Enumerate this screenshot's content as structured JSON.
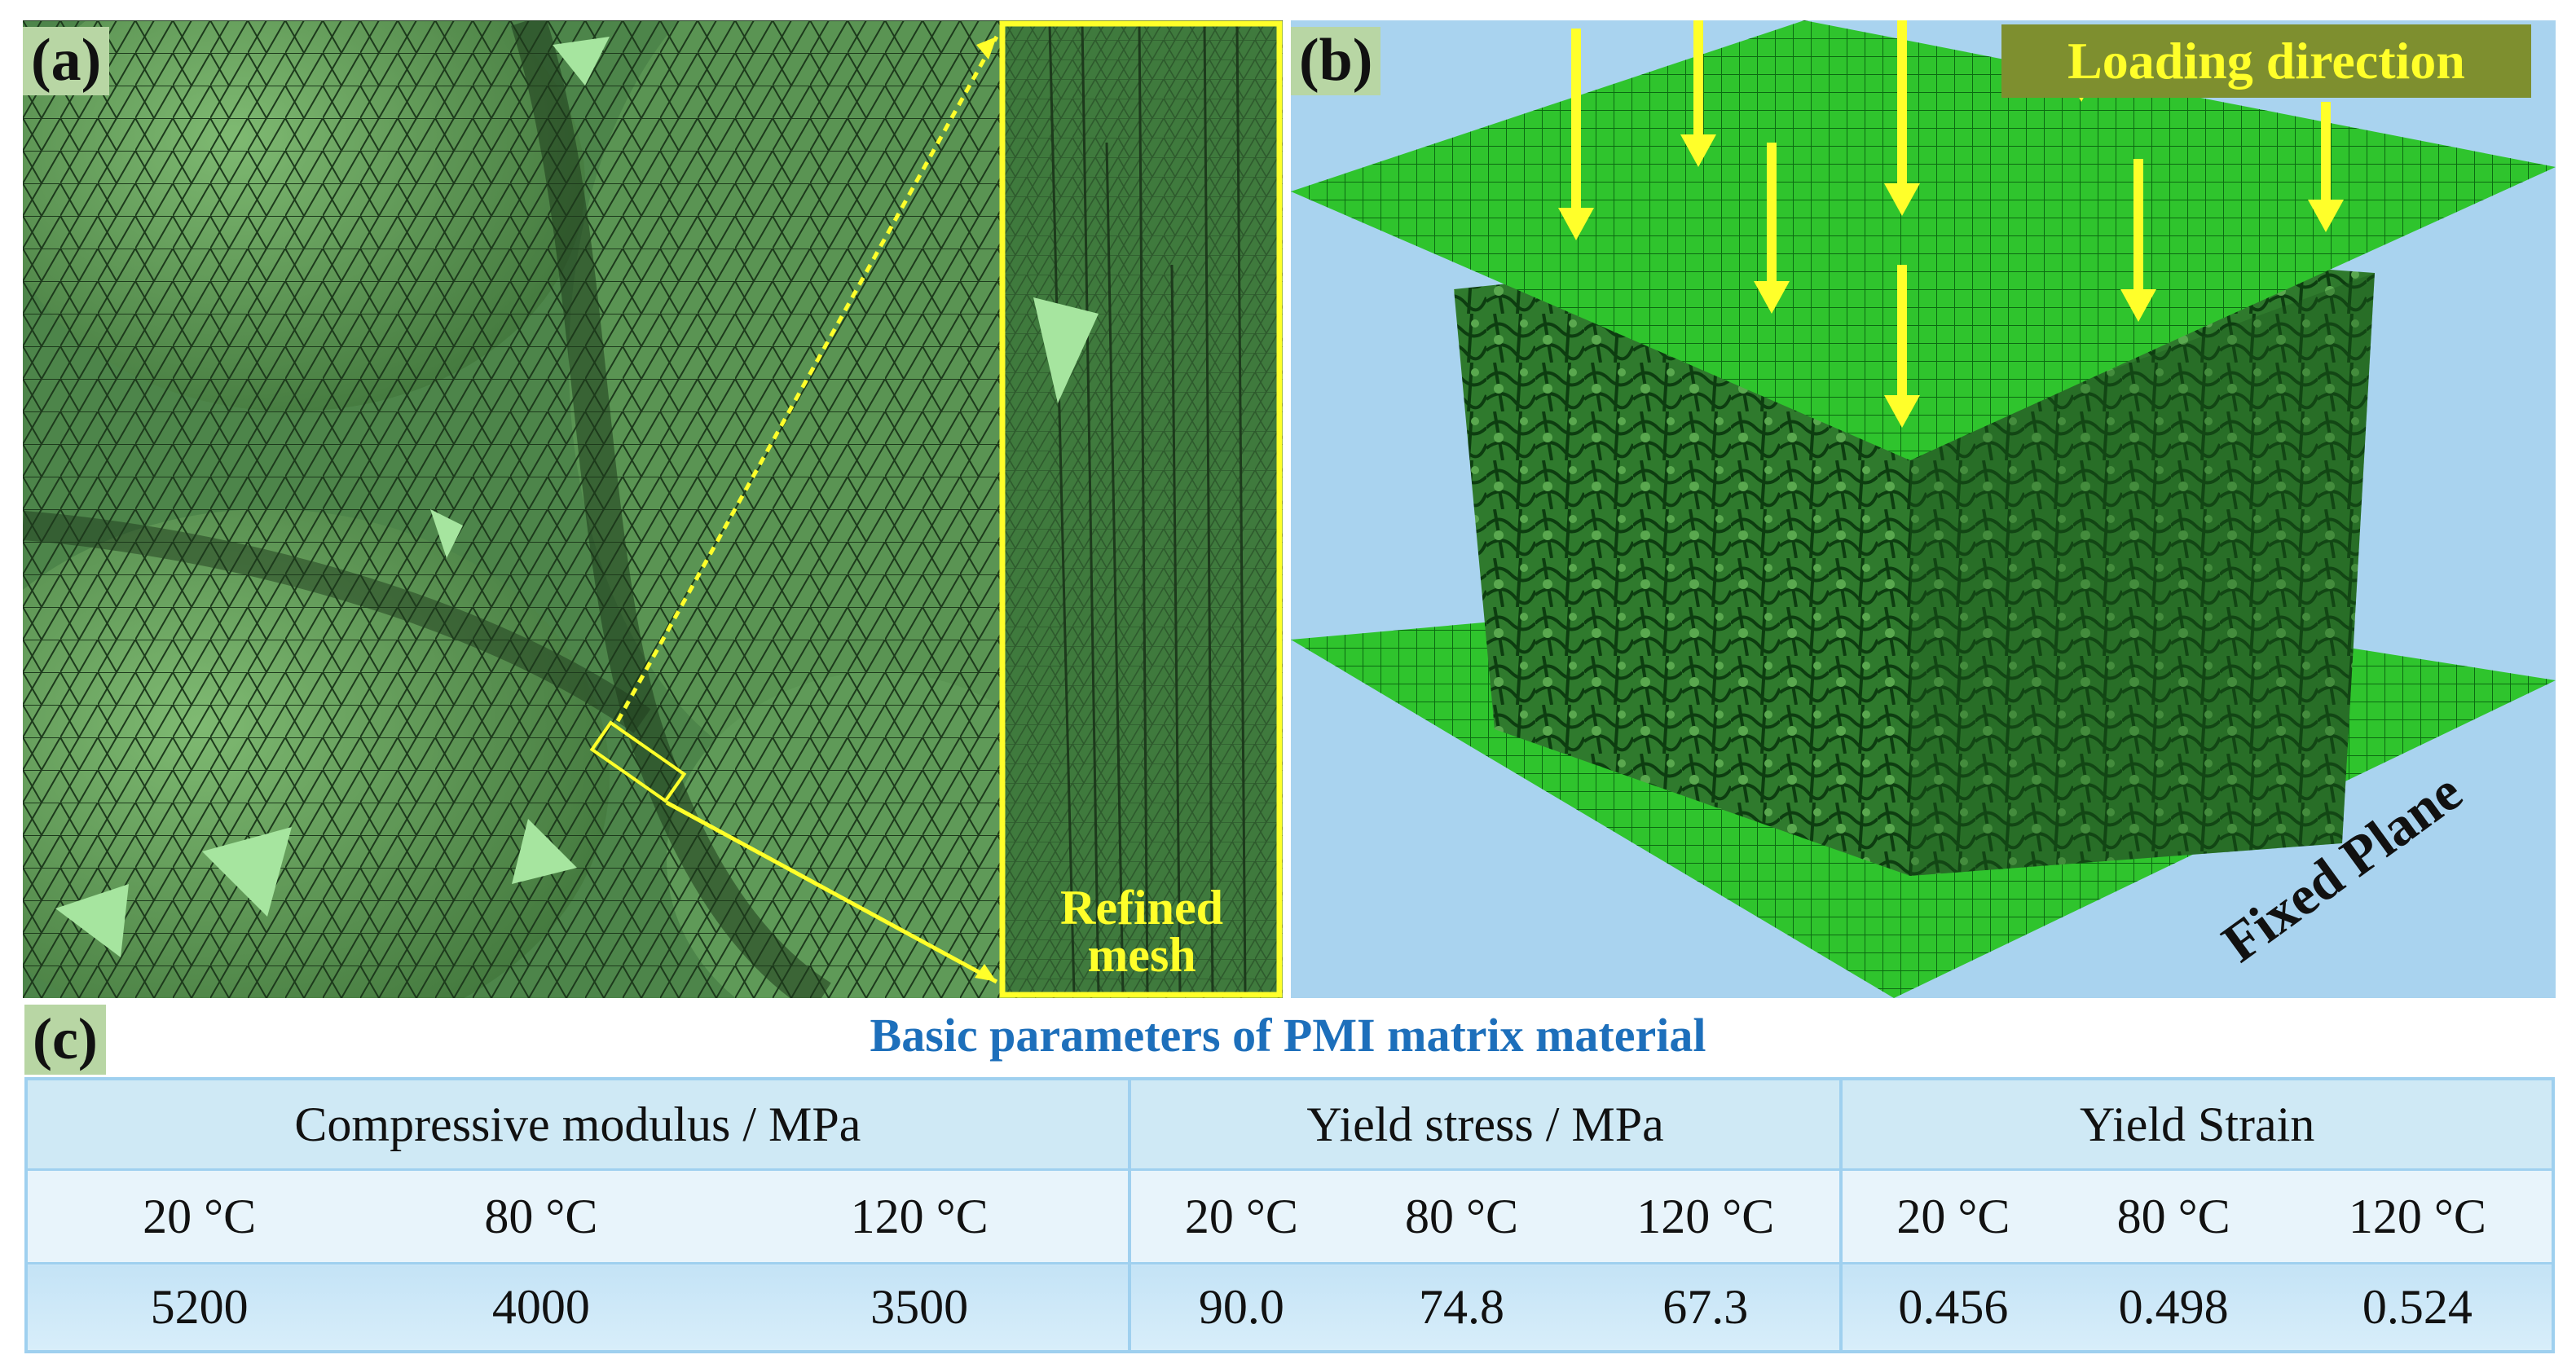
{
  "panel_a": {
    "label": "(a)",
    "inset_label": [
      "Refined",
      "mesh"
    ]
  },
  "panel_b": {
    "label": "(b)",
    "loading_label": "Loading direction",
    "fixed_label": "Fixed Plane"
  },
  "panel_c": {
    "label": "(c)",
    "caption": "Basic parameters of PMI matrix material",
    "groups": [
      {
        "header": "Compressive modulus / MPa",
        "temps": [
          "20 °C",
          "80 °C",
          "120 °C"
        ],
        "values": [
          "5200",
          "4000",
          "3500"
        ]
      },
      {
        "header": "Yield stress / MPa",
        "temps": [
          "20 °C",
          "80 °C",
          "120 °C"
        ],
        "values": [
          "90.0",
          "74.8",
          "67.3"
        ]
      },
      {
        "header": "Yield Strain",
        "temps": [
          "20 °C",
          "80 °C",
          "120 °C"
        ],
        "values": [
          "0.456",
          "0.498",
          "0.524"
        ]
      }
    ]
  },
  "colors": {
    "mesh_green": "#4f8a4a",
    "highlight_green": "#9ee09a",
    "yellow": "#ffff2a",
    "caption_blue": "#1d6fbb",
    "table_border": "#9fd0ef",
    "label_bg": "#b8d6a4"
  }
}
